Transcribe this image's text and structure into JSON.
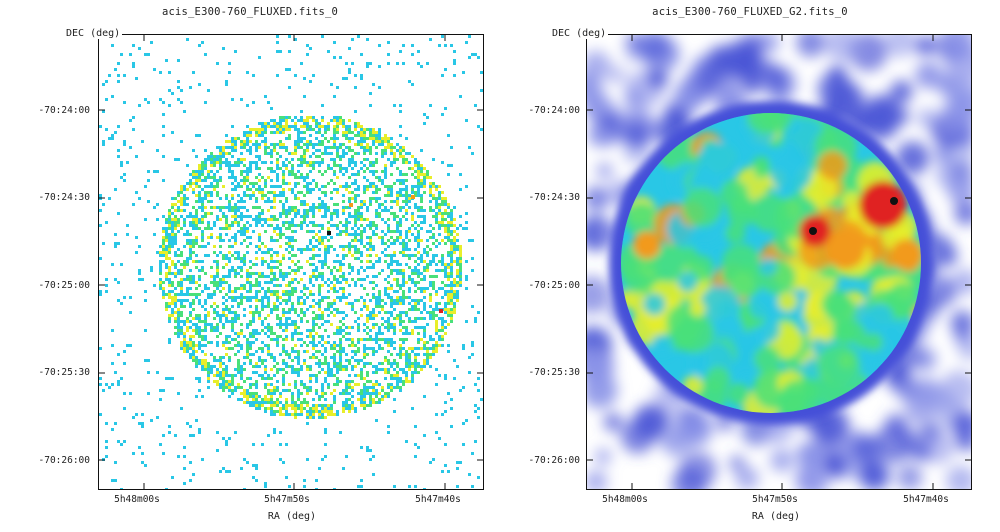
{
  "panels": [
    {
      "title": "acis_E300-760_FLUXED.fits_0",
      "ylabel": "DEC (deg)",
      "xlabel": "RA (deg)",
      "yticks": [
        "-70:24:00",
        "-70:24:30",
        "-70:25:00",
        "-70:25:30",
        "-70:26:00"
      ],
      "xticks": [
        "5h48m00s",
        "5h47m50s",
        "5h47m40s"
      ]
    },
    {
      "title": "acis_E300-760_FLUXED_G2.fits_0",
      "ylabel": "DEC (deg)",
      "xlabel": "RA (deg)",
      "yticks": [
        "-70:24:00",
        "-70:24:30",
        "-70:25:00",
        "-70:25:30",
        "-70:26:00"
      ],
      "xticks": [
        "5h48m00s",
        "5h47m50s",
        "5h47m40s"
      ]
    }
  ],
  "colors": {
    "background": "#ffffff",
    "colormap": [
      "#3a4ad8",
      "#29c7e6",
      "#49e07a",
      "#e8ee2a",
      "#f29a1a",
      "#e02020",
      "#111111"
    ]
  }
}
